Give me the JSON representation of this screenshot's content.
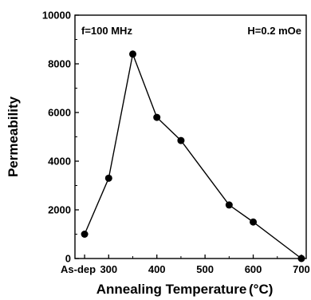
{
  "chart_data": {
    "type": "line",
    "xlabel": "Annealing Temperature",
    "xlabel_unit": "(°C)",
    "ylabel": "Permeability",
    "x_ticks": [
      "As-dep",
      "300",
      "400",
      "500",
      "600",
      "700"
    ],
    "x_tick_values": [
      250,
      300,
      400,
      500,
      600,
      700
    ],
    "xlim": [
      230,
      710
    ],
    "y_ticks": [
      "0",
      "2000",
      "4000",
      "6000",
      "8000",
      "10000"
    ],
    "y_tick_values": [
      0,
      2000,
      4000,
      6000,
      8000,
      10000
    ],
    "ylim": [
      0,
      10000
    ],
    "annotations": {
      "left": "f=100 MHz",
      "right": "H=0.2 mOe"
    },
    "series": [
      {
        "marker": "filled-circle",
        "color": "#000000",
        "x": [
          "As-dep",
          300,
          350,
          400,
          450,
          550,
          600,
          700
        ],
        "x_numeric": [
          250,
          300,
          350,
          400,
          450,
          550,
          600,
          700
        ],
        "values": [
          1000,
          3300,
          8400,
          5800,
          4850,
          2200,
          1500,
          0
        ]
      }
    ]
  }
}
